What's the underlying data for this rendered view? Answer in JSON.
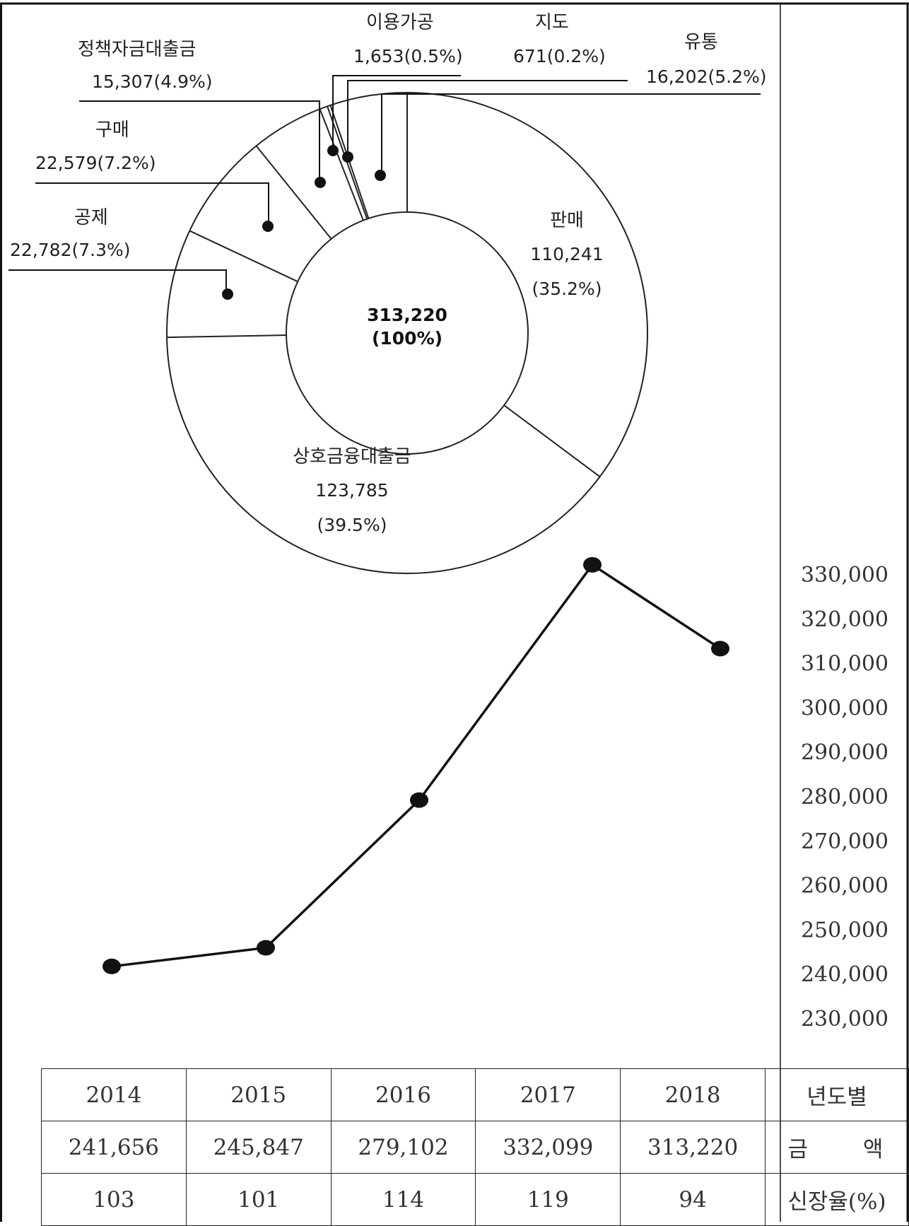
{
  "chart_data": [
    {
      "type": "pie",
      "style": "donut",
      "center_label": {
        "value": "313,220",
        "percent": "(100%)"
      },
      "slices": [
        {
          "name": "판매",
          "value": 110241,
          "value_label": "110,241",
          "percent_label": "(35.2%)"
        },
        {
          "name": "상호금융대출금",
          "value": 123785,
          "value_label": "123,785",
          "percent_label": "(39.5%)"
        },
        {
          "name": "공제",
          "value": 22782,
          "value_label": "22,782(7.3%)"
        },
        {
          "name": "구매",
          "value": 22579,
          "value_label": "22,579(7.2%)"
        },
        {
          "name": "정책자금대출금",
          "value": 15307,
          "value_label": "15,307(4.9%)"
        },
        {
          "name": "이용가공",
          "value": 1653,
          "value_label": "1,653(0.5%)"
        },
        {
          "name": "지도",
          "value": 671,
          "value_label": "671(0.2%)"
        },
        {
          "name": "유통",
          "value": 16202,
          "value_label": "16,202(5.2%)"
        }
      ]
    },
    {
      "type": "line",
      "x": [
        "2014",
        "2015",
        "2016",
        "2017",
        "2018"
      ],
      "series": [
        {
          "values": [
            241656,
            245847,
            279102,
            332099,
            313220
          ]
        }
      ],
      "ylim": [
        230000,
        330000
      ],
      "yticks": [
        "330,000",
        "320,000",
        "310,000",
        "300,000",
        "290,000",
        "280,000",
        "270,000",
        "260,000",
        "250,000",
        "240,000",
        "230,000"
      ],
      "marker": "dot",
      "axis_position": "right",
      "grid": false
    },
    {
      "type": "table",
      "years": [
        "2014",
        "2015",
        "2016",
        "2017",
        "2018"
      ],
      "row_headers": {
        "year": "년도별",
        "amount": "금 액",
        "growth": "신장율(%)"
      },
      "amounts": [
        "241,656",
        "245,847",
        "279,102",
        "332,099",
        "313,220"
      ],
      "growth": [
        "103",
        "101",
        "114",
        "119",
        "94"
      ]
    }
  ]
}
